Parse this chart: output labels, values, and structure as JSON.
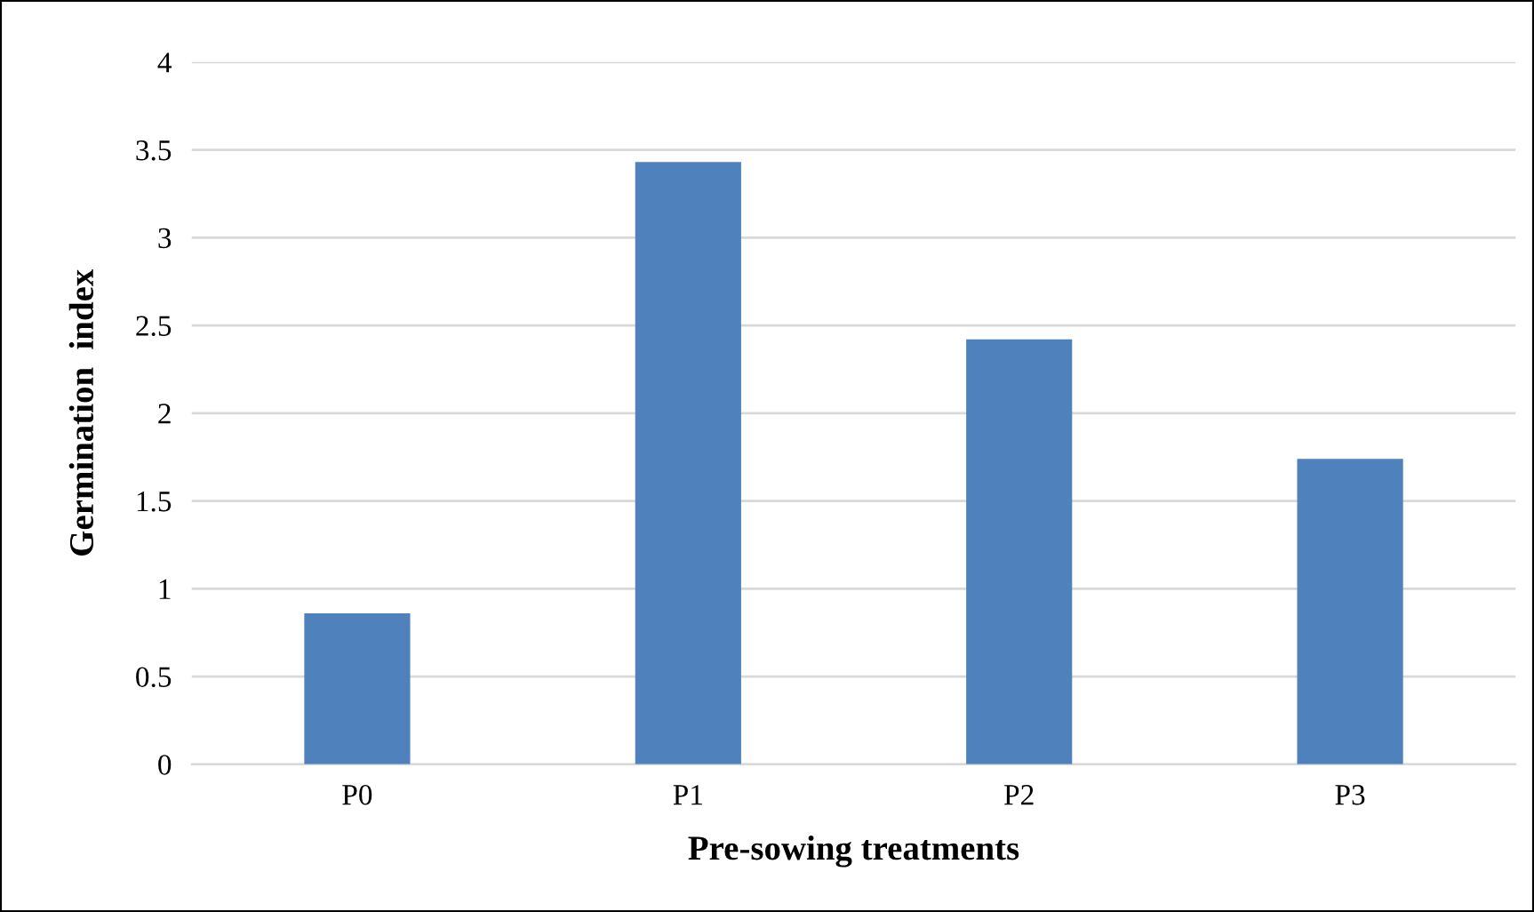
{
  "chart_data": {
    "type": "bar",
    "xlabel": "Pre-sowing treatments",
    "ylabel": "Germination  index",
    "categories": [
      "P0",
      "P1",
      "P2",
      "P3"
    ],
    "values": [
      0.86,
      3.43,
      2.42,
      1.74
    ],
    "color": "#4f81bd",
    "ylim": [
      0,
      4
    ],
    "yticks": [
      0,
      0.5,
      1,
      1.5,
      2,
      2.5,
      3,
      3.5,
      4
    ],
    "grid": "y",
    "legend": false
  }
}
